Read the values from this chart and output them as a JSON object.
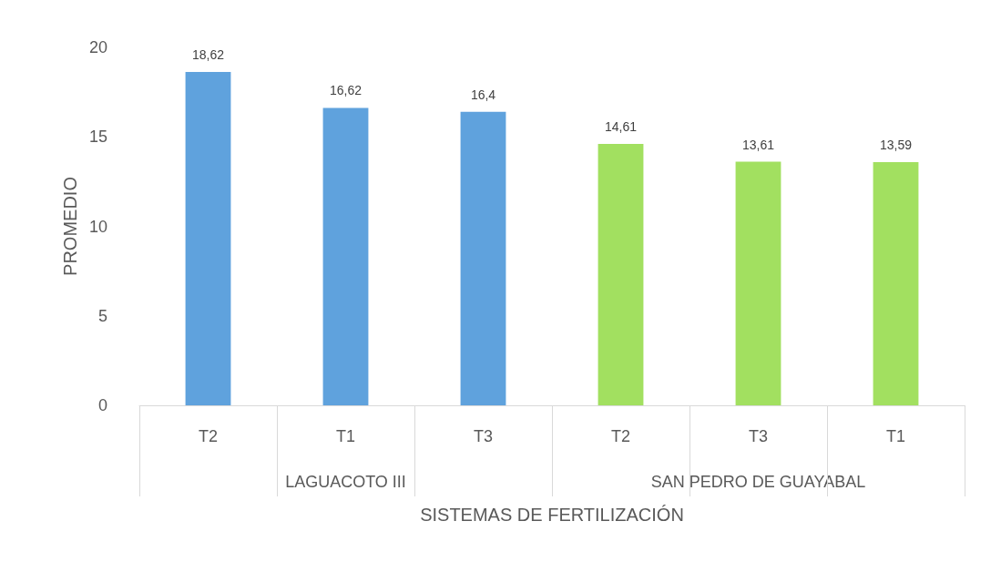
{
  "chart_data": {
    "type": "bar",
    "xlabel": "SISTEMAS DE FERTILIZACIÓN",
    "ylabel": "PROMEDIO",
    "categories": [
      "T2",
      "T1",
      "T3",
      "T2",
      "T3",
      "T1"
    ],
    "values": [
      18.62,
      16.62,
      16.4,
      14.61,
      13.61,
      13.59
    ],
    "value_labels": [
      "18,62",
      "16,62",
      "16,4",
      "14,61",
      "13,61",
      "13,59"
    ],
    "colors": [
      "#5fa2dd",
      "#5fa2dd",
      "#5fa2dd",
      "#a2e060",
      "#a2e060",
      "#a2e060"
    ],
    "ylim": [
      0,
      20
    ],
    "yticks": [
      0,
      5,
      10,
      15,
      20
    ],
    "grid": false,
    "annotations": [
      "LAGUACOTO III",
      "SAN PEDRO DE GUAYABAL"
    ]
  }
}
